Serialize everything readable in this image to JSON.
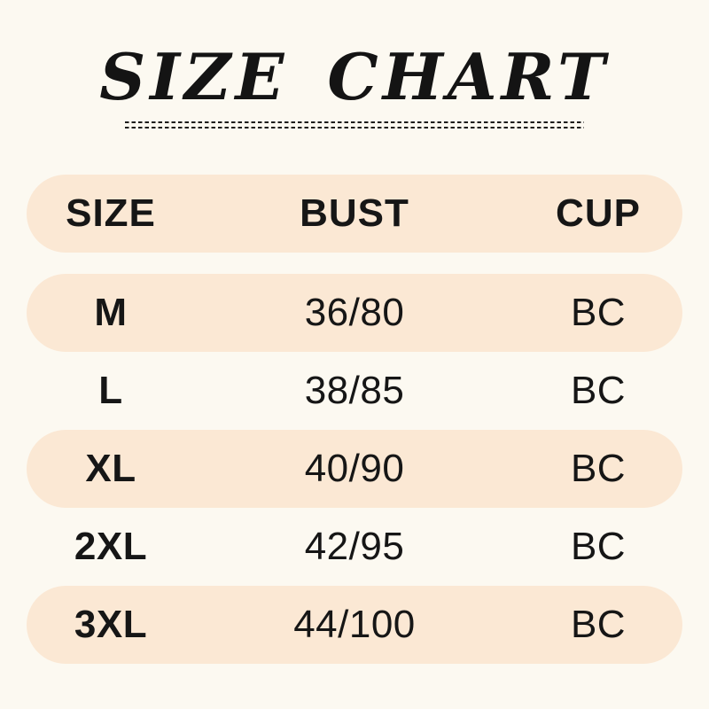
{
  "title": "SIZE CHART",
  "theme": {
    "background_color": "#FCF9F1",
    "row_pill_color": "#FBE8D4",
    "text_color": "#161616"
  },
  "table": {
    "headers": [
      "SIZE",
      "BUST",
      "CUP"
    ],
    "rows": [
      {
        "size": "M",
        "bust": "36/80",
        "cup": "BC"
      },
      {
        "size": "L",
        "bust": "38/85",
        "cup": "BC"
      },
      {
        "size": "XL",
        "bust": "40/90",
        "cup": "BC"
      },
      {
        "size": "2XL",
        "bust": "42/95",
        "cup": "BC"
      },
      {
        "size": "3XL",
        "bust": "44/100",
        "cup": "BC"
      }
    ]
  },
  "chart_data": {
    "type": "table",
    "title": "SIZE CHART",
    "columns": [
      "SIZE",
      "BUST",
      "CUP"
    ],
    "rows": [
      [
        "M",
        "36/80",
        "BC"
      ],
      [
        "L",
        "38/85",
        "BC"
      ],
      [
        "XL",
        "40/90",
        "BC"
      ],
      [
        "2XL",
        "42/95",
        "BC"
      ],
      [
        "3XL",
        "44/100",
        "BC"
      ]
    ],
    "layout": {
      "highlighted_rows": [
        "header",
        "M",
        "XL",
        "3XL"
      ],
      "highlight_style": "rounded peach pill"
    }
  }
}
